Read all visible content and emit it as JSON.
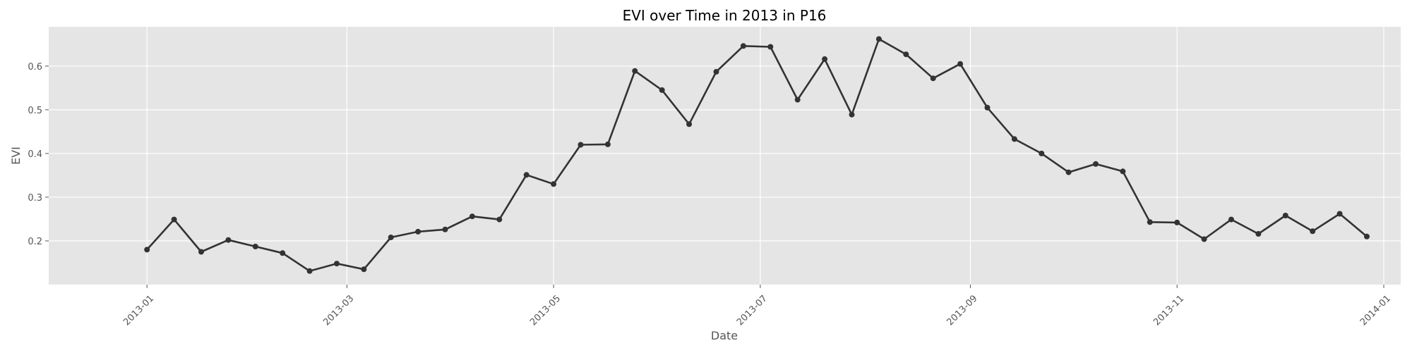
{
  "chart_data": {
    "type": "line",
    "title": "EVI over Time in 2013 in P16",
    "xlabel": "Date",
    "ylabel": "EVI",
    "xlim": [
      "2012-12-03",
      "2014-01-06"
    ],
    "ylim": [
      0.1,
      0.69
    ],
    "x_ticks": [
      "2013-01",
      "2013-03",
      "2013-05",
      "2013-07",
      "2013-09",
      "2013-11",
      "2014-01"
    ],
    "y_ticks": [
      "0.2",
      "0.3",
      "0.4",
      "0.5",
      "0.6"
    ],
    "grid": true,
    "colors": {
      "plot_background": "#e5e5e5",
      "line": "#333333",
      "grid": "#ffffff"
    },
    "series": [
      {
        "x": [
          "2013-01-01",
          "2013-01-09",
          "2013-01-17",
          "2013-01-25",
          "2013-02-02",
          "2013-02-10",
          "2013-02-18",
          "2013-02-26",
          "2013-03-06",
          "2013-03-14",
          "2013-03-22",
          "2013-03-30",
          "2013-04-07",
          "2013-04-15",
          "2013-04-23",
          "2013-05-01",
          "2013-05-09",
          "2013-05-17",
          "2013-05-25",
          "2013-06-02",
          "2013-06-10",
          "2013-06-18",
          "2013-06-26",
          "2013-07-04",
          "2013-07-12",
          "2013-07-20",
          "2013-07-28",
          "2013-08-05",
          "2013-08-13",
          "2013-08-21",
          "2013-08-29",
          "2013-09-06",
          "2013-09-14",
          "2013-09-22",
          "2013-09-30",
          "2013-10-08",
          "2013-10-16",
          "2013-10-24",
          "2013-11-01",
          "2013-11-09",
          "2013-11-17",
          "2013-11-25",
          "2013-12-03",
          "2013-12-11",
          "2013-12-19",
          "2013-12-27"
        ],
        "values": [
          0.18,
          0.249,
          0.175,
          0.202,
          0.187,
          0.172,
          0.131,
          0.148,
          0.135,
          0.208,
          0.221,
          0.226,
          0.256,
          0.249,
          0.351,
          0.33,
          0.42,
          0.421,
          0.589,
          0.545,
          0.467,
          0.587,
          0.646,
          0.644,
          0.523,
          0.616,
          0.489,
          0.662,
          0.627,
          0.572,
          0.605,
          0.505,
          0.433,
          0.4,
          0.357,
          0.376,
          0.359,
          0.243,
          0.242,
          0.204,
          0.249,
          0.216,
          0.258,
          0.222,
          0.262,
          0.21
        ]
      }
    ]
  }
}
